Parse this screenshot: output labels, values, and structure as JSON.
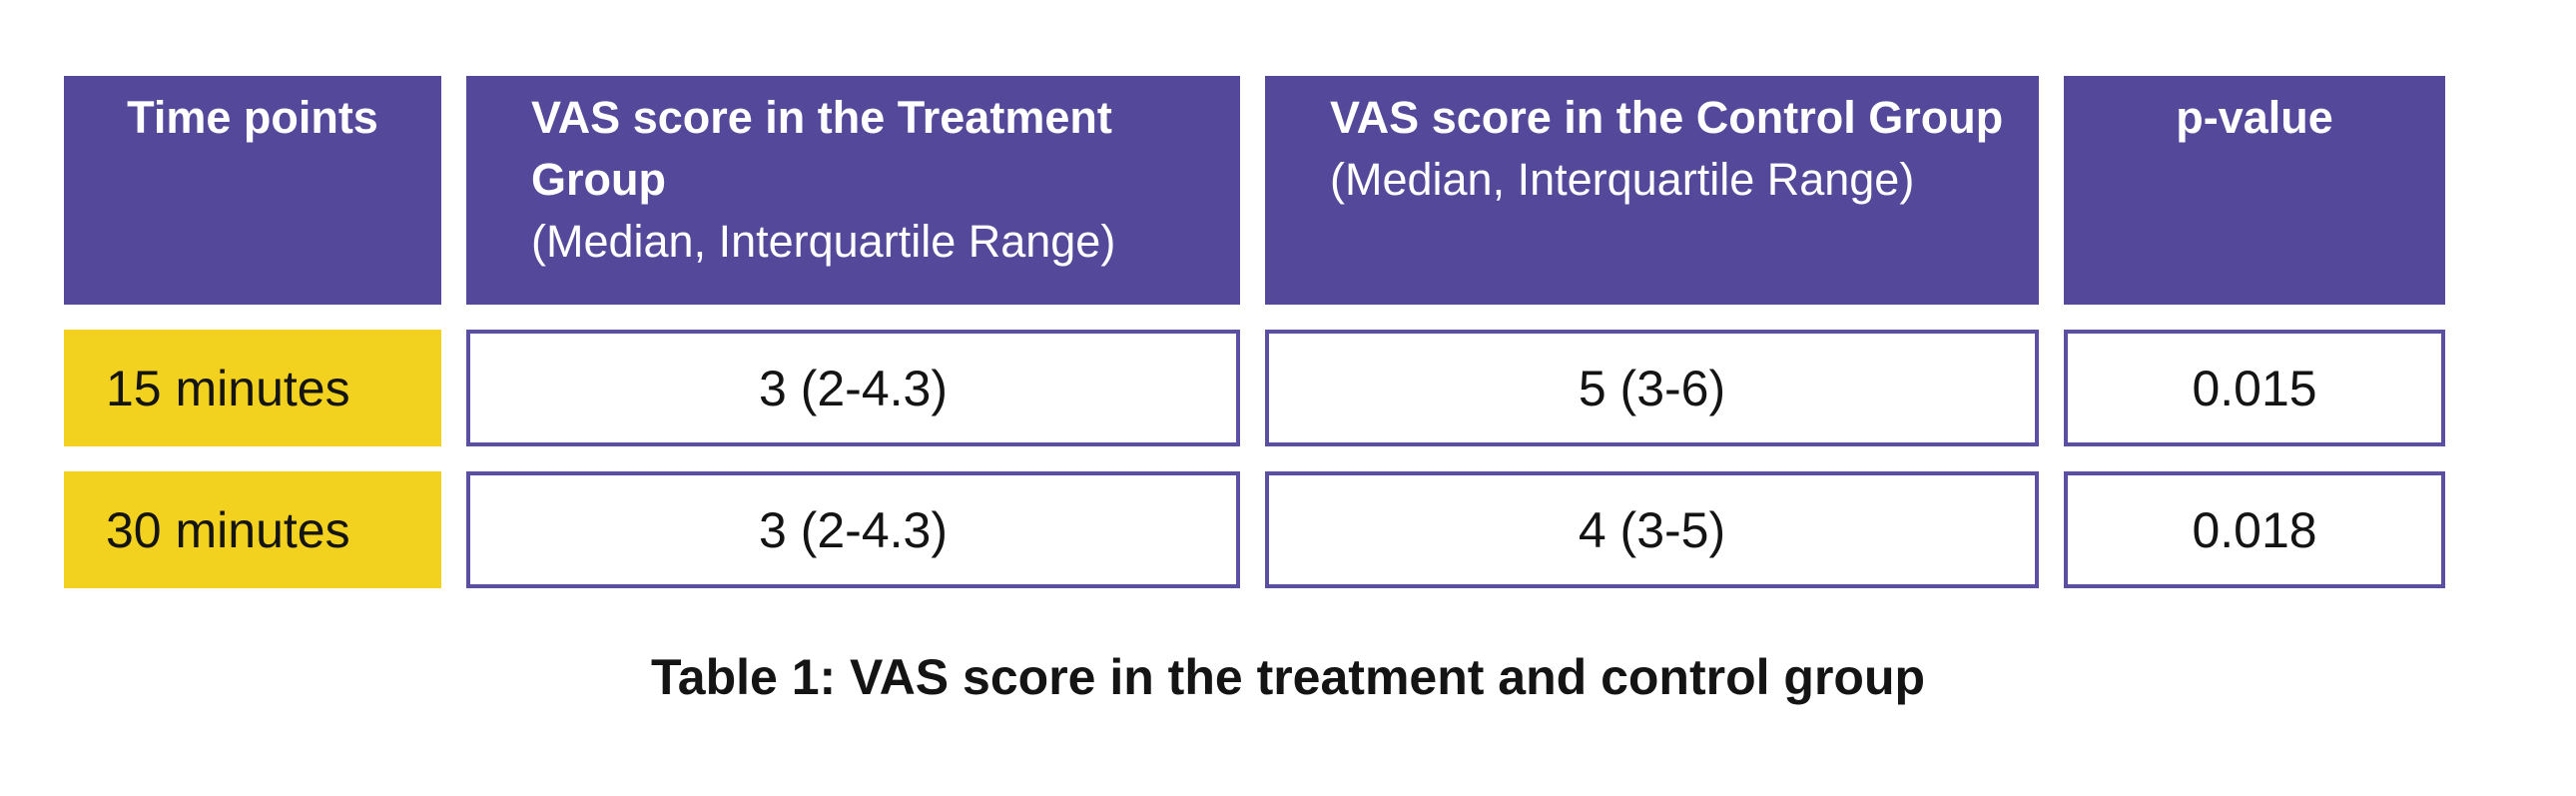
{
  "figure": {
    "caption": "Table 1: VAS score in the treatment and control group"
  },
  "table": {
    "header": [
      {
        "title": "Time points",
        "sub": ""
      },
      {
        "title": "VAS score in the Treatment Group",
        "sub": "(Median, Interquartile Range)"
      },
      {
        "title": "VAS score in the Control Group",
        "sub": "(Median, Interquartile Range)"
      },
      {
        "title": "p-value",
        "sub": ""
      }
    ],
    "rows": [
      {
        "time": "15 minutes",
        "treatment": "3 (2-4.3)",
        "control": "5 (3-6)",
        "p_value": "0.015"
      },
      {
        "time": "30 minutes",
        "treatment": "3 (2-4.3)",
        "control": "4 (3-5)",
        "p_value": "0.018"
      }
    ]
  },
  "colors": {
    "header_bg": "#54489A",
    "row_label_bg": "#F2D21E",
    "value_cell_border": "#5A4FA0",
    "header_text": "#FFFFFF",
    "body_text": "#141414",
    "background": "#FFFFFF"
  },
  "chart_data": {
    "type": "table",
    "title": "Table 1: VAS score in the treatment and control group",
    "columns": [
      "Time points",
      "VAS score in the Treatment Group (Median, Interquartile Range)",
      "VAS score in the Control Group (Median, Interquartile Range)",
      "p-value"
    ],
    "rows": [
      [
        "15 minutes",
        "3 (2-4.3)",
        "5 (3-6)",
        "0.015"
      ],
      [
        "30 minutes",
        "3 (2-4.3)",
        "4 (3-5)",
        "0.018"
      ]
    ],
    "layout": {
      "grid": "off",
      "caption_position": "bottom-center"
    }
  }
}
